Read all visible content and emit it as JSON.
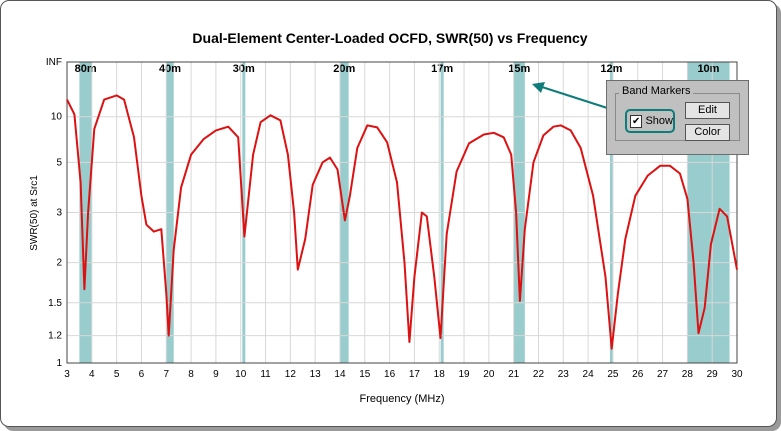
{
  "chart_data": {
    "type": "line",
    "title": "Dual-Element Center-Loaded OCFD,  SWR(50)  vs  Frequency",
    "xlabel": "Frequency (MHz)",
    "ylabel": "SWR(50) at Src1",
    "xlim": [
      3,
      30
    ],
    "ylim": [
      1,
      "INF"
    ],
    "y_scale": "swr",
    "grid": true,
    "x_ticks": [
      "3",
      "4",
      "5",
      "6",
      "7",
      "8",
      "9",
      "10",
      "11",
      "12",
      "13",
      "14",
      "15",
      "16",
      "17",
      "18",
      "19",
      "20",
      "21",
      "22",
      "23",
      "24",
      "25",
      "26",
      "27",
      "28",
      "29",
      "30"
    ],
    "y_ticks": [
      "1",
      "1.2",
      "1.5",
      "2",
      "3",
      "5",
      "10",
      "INF"
    ],
    "band_markers": [
      {
        "label": "80m",
        "start": 3.5,
        "end": 4.0
      },
      {
        "label": "40m",
        "start": 7.0,
        "end": 7.3
      },
      {
        "label": "30m",
        "start": 10.1,
        "end": 10.15
      },
      {
        "label": "20m",
        "start": 14.0,
        "end": 14.35
      },
      {
        "label": "17m",
        "start": 18.068,
        "end": 18.168
      },
      {
        "label": "15m",
        "start": 21.0,
        "end": 21.45
      },
      {
        "label": "12m",
        "start": 24.89,
        "end": 24.99
      },
      {
        "label": "10m",
        "start": 28.0,
        "end": 29.7
      }
    ],
    "series": [
      {
        "color": "#dd1111",
        "points": [
          [
            3.0,
            15.0
          ],
          [
            3.3,
            10.5
          ],
          [
            3.55,
            4.0
          ],
          [
            3.7,
            1.65
          ],
          [
            3.85,
            3.0
          ],
          [
            4.1,
            8.0
          ],
          [
            4.5,
            15.0
          ],
          [
            5.0,
            17.0
          ],
          [
            5.3,
            15.0
          ],
          [
            5.7,
            7.0
          ],
          [
            6.0,
            3.5
          ],
          [
            6.2,
            2.7
          ],
          [
            6.5,
            2.55
          ],
          [
            6.8,
            2.6
          ],
          [
            7.0,
            1.6
          ],
          [
            7.1,
            1.2
          ],
          [
            7.3,
            2.2
          ],
          [
            7.6,
            3.8
          ],
          [
            8.0,
            5.5
          ],
          [
            8.5,
            6.8
          ],
          [
            9.0,
            7.8
          ],
          [
            9.5,
            8.3
          ],
          [
            9.9,
            7.0
          ],
          [
            10.15,
            2.45
          ],
          [
            10.5,
            5.5
          ],
          [
            10.8,
            9.0
          ],
          [
            11.2,
            10.3
          ],
          [
            11.6,
            9.3
          ],
          [
            11.9,
            5.5
          ],
          [
            12.15,
            3.0
          ],
          [
            12.3,
            1.9
          ],
          [
            12.6,
            2.4
          ],
          [
            12.9,
            3.9
          ],
          [
            13.3,
            5.0
          ],
          [
            13.6,
            5.3
          ],
          [
            13.9,
            4.6
          ],
          [
            14.2,
            2.8
          ],
          [
            14.4,
            3.5
          ],
          [
            14.7,
            6.0
          ],
          [
            15.1,
            8.5
          ],
          [
            15.5,
            8.2
          ],
          [
            15.9,
            6.5
          ],
          [
            16.3,
            4.0
          ],
          [
            16.6,
            2.0
          ],
          [
            16.8,
            1.15
          ],
          [
            17.0,
            1.8
          ],
          [
            17.3,
            3.0
          ],
          [
            17.5,
            2.9
          ],
          [
            17.8,
            1.8
          ],
          [
            18.05,
            1.18
          ],
          [
            18.3,
            2.5
          ],
          [
            18.7,
            4.5
          ],
          [
            19.2,
            6.4
          ],
          [
            19.8,
            7.3
          ],
          [
            20.2,
            7.5
          ],
          [
            20.6,
            7.0
          ],
          [
            20.9,
            5.5
          ],
          [
            21.1,
            3.0
          ],
          [
            21.25,
            1.52
          ],
          [
            21.45,
            2.6
          ],
          [
            21.8,
            5.0
          ],
          [
            22.2,
            7.2
          ],
          [
            22.6,
            8.3
          ],
          [
            22.9,
            8.5
          ],
          [
            23.3,
            7.8
          ],
          [
            23.7,
            6.0
          ],
          [
            24.2,
            3.5
          ],
          [
            24.7,
            1.8
          ],
          [
            24.95,
            1.1
          ],
          [
            25.2,
            1.6
          ],
          [
            25.5,
            2.4
          ],
          [
            25.9,
            3.5
          ],
          [
            26.4,
            4.3
          ],
          [
            26.9,
            4.8
          ],
          [
            27.3,
            4.8
          ],
          [
            27.7,
            4.4
          ],
          [
            28.0,
            3.4
          ],
          [
            28.25,
            2.0
          ],
          [
            28.45,
            1.22
          ],
          [
            28.7,
            1.45
          ],
          [
            28.95,
            2.3
          ],
          [
            29.3,
            3.1
          ],
          [
            29.6,
            2.9
          ],
          [
            30.0,
            1.9
          ]
        ]
      }
    ]
  },
  "band_markers_panel": {
    "title": "Band Markers",
    "show_label": "Show",
    "show_checked": "✔",
    "edit_label": "Edit",
    "color_label": "Color"
  },
  "colors": {
    "band_fill": "#99cccc",
    "curve": "#dd1111",
    "callout": "#0e7c7b"
  }
}
